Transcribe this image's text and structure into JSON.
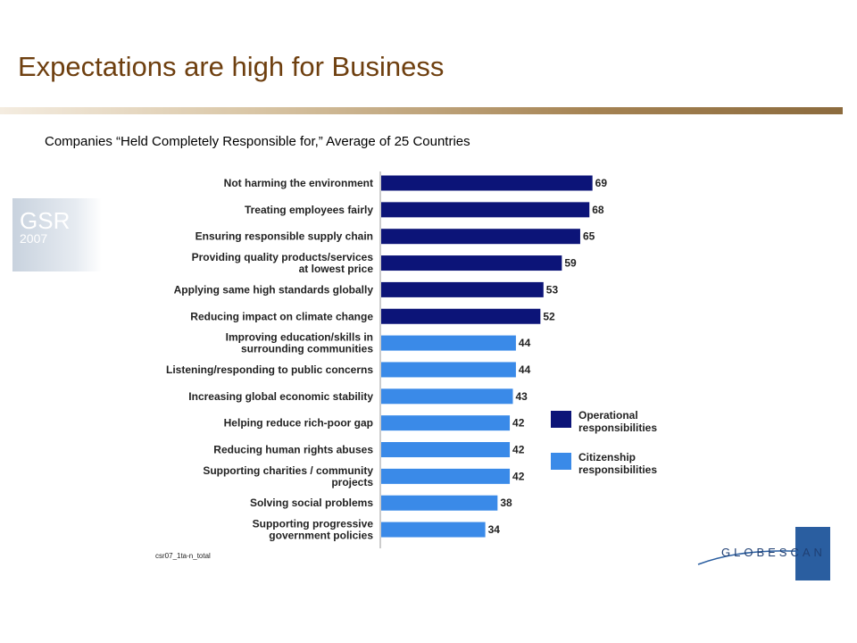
{
  "header": {
    "title": "Expectations  are high for Business",
    "subtitle": "Companies “Held Completely Responsible for,” Average of 25 Countries"
  },
  "gsr_logo": {
    "line1": "GSR",
    "line2": "2007"
  },
  "globescan_logo": {
    "text": "GLOBESCAN"
  },
  "chart_code": "csr07_1ta-n_total",
  "colors": {
    "operational": "#0c1478",
    "citizenship": "#3a8ae8",
    "title": "#6e3f0f"
  },
  "chart_data": {
    "type": "bar",
    "orientation": "horizontal",
    "title": "Companies “Held Completely Responsible for,” Average of 25 Countries",
    "categories": [
      [
        "Not harming the environment"
      ],
      [
        "Treating employees fairly"
      ],
      [
        "Ensuring responsible supply chain"
      ],
      [
        "Providing quality products/services",
        "at lowest price"
      ],
      [
        "Applying same high standards globally"
      ],
      [
        "Reducing impact on climate change"
      ],
      [
        "Improving education/skills in",
        "surrounding communities"
      ],
      [
        "Listening/responding to public concerns"
      ],
      [
        "Increasing global economic stability"
      ],
      [
        "Helping reduce rich-poor gap"
      ],
      [
        "Reducing human rights abuses"
      ],
      [
        "Supporting charities / community",
        "projects"
      ],
      [
        "Solving social problems"
      ],
      [
        "Supporting progressive",
        "government policies"
      ]
    ],
    "values": [
      69,
      68,
      65,
      59,
      53,
      52,
      44,
      44,
      43,
      42,
      42,
      42,
      38,
      34
    ],
    "groups": [
      "operational",
      "operational",
      "operational",
      "operational",
      "operational",
      "operational",
      "citizenship",
      "citizenship",
      "citizenship",
      "citizenship",
      "citizenship",
      "citizenship",
      "citizenship",
      "citizenship"
    ],
    "legend": [
      {
        "key": "operational",
        "label": [
          "Operational",
          "responsibilities"
        ]
      },
      {
        "key": "citizenship",
        "label": [
          "Citizenship",
          "responsibilities"
        ]
      }
    ],
    "legend_position": "right",
    "xlim": [
      0,
      100
    ],
    "grid": false
  }
}
